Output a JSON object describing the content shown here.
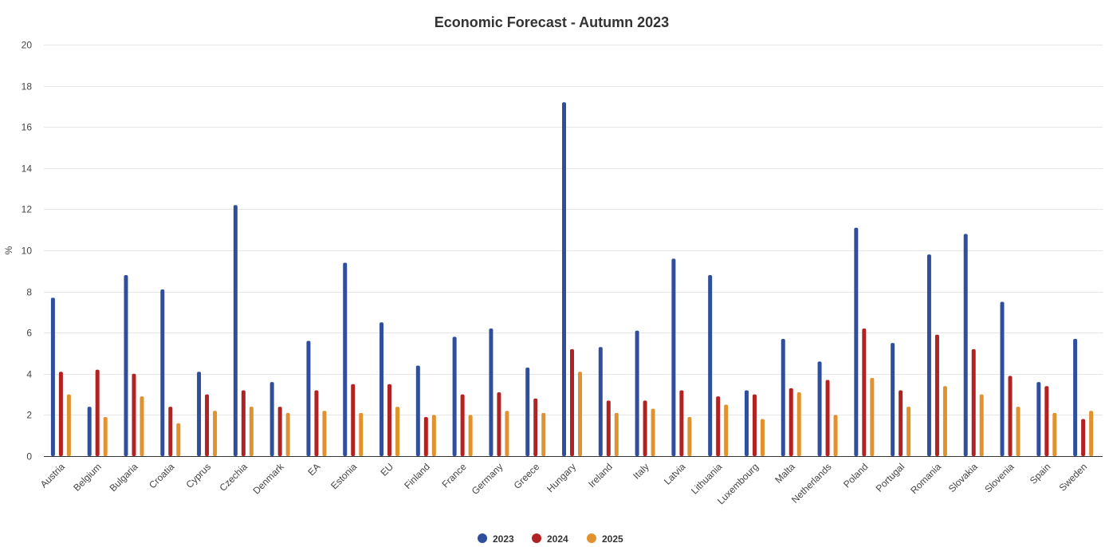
{
  "chart_data": {
    "type": "bar",
    "title": "Economic Forecast - Autumn 2023",
    "xlabel": "",
    "ylabel": "%",
    "ylim": [
      0,
      20
    ],
    "yticks": [
      "0",
      "2",
      "4",
      "6",
      "8",
      "10",
      "12",
      "14",
      "16",
      "18",
      "20"
    ],
    "grid": true,
    "legend_position": "bottom",
    "categories": [
      "Austria",
      "Belgium",
      "Bulgaria",
      "Croatia",
      "Cyprus",
      "Czechia",
      "Denmark",
      "EA",
      "Estonia",
      "EU",
      "Finland",
      "France",
      "Germany",
      "Greece",
      "Hungary",
      "Ireland",
      "Italy",
      "Latvia",
      "Lithuania",
      "Luxembourg",
      "Malta",
      "Netherlands",
      "Poland",
      "Portugal",
      "Romania",
      "Slovakia",
      "Slovenia",
      "Spain",
      "Sweden"
    ],
    "series": [
      {
        "name": "2023",
        "color": "#2f4f9c",
        "values": [
          7.7,
          2.4,
          8.8,
          8.1,
          4.1,
          12.2,
          3.6,
          5.6,
          9.4,
          6.5,
          4.4,
          5.8,
          6.2,
          4.3,
          17.2,
          5.3,
          6.1,
          9.6,
          8.8,
          3.2,
          5.7,
          4.6,
          11.1,
          5.5,
          9.8,
          10.8,
          7.5,
          3.6,
          5.7
        ]
      },
      {
        "name": "2024",
        "color": "#b22222",
        "values": [
          4.1,
          4.2,
          4.0,
          2.4,
          3.0,
          3.2,
          2.4,
          3.2,
          3.5,
          3.5,
          1.9,
          3.0,
          3.1,
          2.8,
          5.2,
          2.7,
          2.7,
          3.2,
          2.9,
          3.0,
          3.3,
          3.7,
          6.2,
          3.2,
          5.9,
          5.2,
          3.9,
          3.4,
          1.8
        ]
      },
      {
        "name": "2025",
        "color": "#e0922f",
        "values": [
          3.0,
          1.9,
          2.9,
          1.6,
          2.2,
          2.4,
          2.1,
          2.2,
          2.1,
          2.4,
          2.0,
          2.0,
          2.2,
          2.1,
          4.1,
          2.1,
          2.3,
          1.9,
          2.5,
          1.8,
          3.1,
          2.0,
          3.8,
          2.4,
          3.4,
          3.0,
          2.4,
          2.1,
          2.2
        ]
      }
    ]
  }
}
